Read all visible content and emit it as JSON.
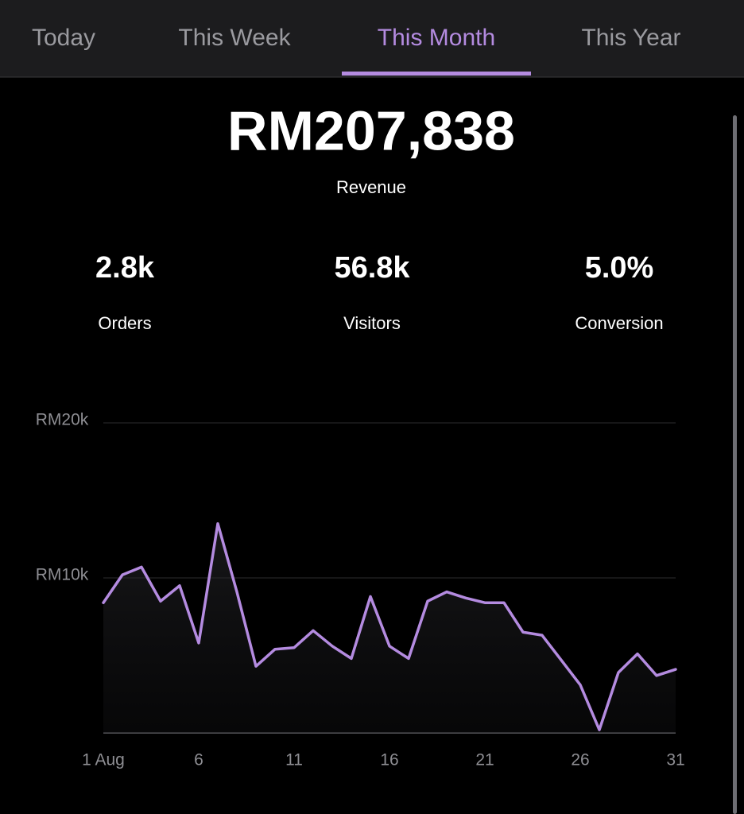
{
  "tabs": {
    "items": [
      "Today",
      "This Week",
      "This Month",
      "This Year"
    ],
    "active": 2
  },
  "summary": {
    "value": "RM207,838",
    "label": "Revenue"
  },
  "stats": [
    {
      "value": "2.8k",
      "label": "Orders"
    },
    {
      "value": "56.8k",
      "label": "Visitors"
    },
    {
      "value": "5.0%",
      "label": "Conversion"
    }
  ],
  "chart_data": {
    "type": "line",
    "x": [
      1,
      2,
      3,
      4,
      5,
      6,
      7,
      8,
      9,
      10,
      11,
      12,
      13,
      14,
      15,
      16,
      17,
      18,
      19,
      20,
      21,
      22,
      23,
      24,
      25,
      26,
      27,
      28,
      29,
      30,
      31
    ],
    "values": [
      8400,
      10200,
      10700,
      8500,
      9500,
      5800,
      13500,
      9100,
      4300,
      5400,
      5500,
      6600,
      5600,
      4800,
      8800,
      5600,
      4800,
      8500,
      9100,
      8700,
      8400,
      8400,
      6500,
      6300,
      4700,
      3100,
      200,
      3900,
      5100,
      3700,
      4100
    ],
    "color": "#b48be0",
    "xlim": [
      1,
      31
    ],
    "xticks": [
      {
        "value": 1,
        "label": "1 Aug"
      },
      6,
      11,
      16,
      21,
      26,
      31
    ],
    "ylim": [
      0,
      20000
    ],
    "yticks": [
      0,
      {
        "value": 10000,
        "label": "RM10k"
      },
      {
        "value": 20000,
        "label": "RM20k"
      }
    ],
    "grid": true
  }
}
